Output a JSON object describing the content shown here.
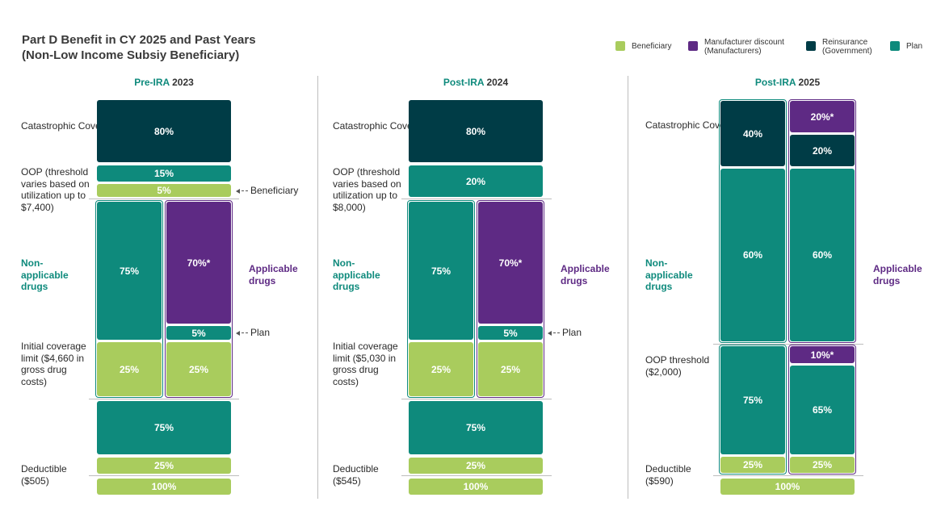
{
  "chart_data": {
    "type": "stacked-bar",
    "title": "Part D Benefit in CY 2025 and Past Years",
    "subtitle": "(Non-Low Income Subsiy Beneficiary)",
    "legend": [
      {
        "name": "Beneficiary",
        "color": "#a9cc5d"
      },
      {
        "name": "Manufacturer discount (Manufacturers)",
        "line1": "Manufacturer discount",
        "line2": "(Manufacturers)",
        "color": "#5e2a84"
      },
      {
        "name": "Reinsurance (Government)",
        "line1": "Reinsurance",
        "line2": "(Government)",
        "color": "#003c46"
      },
      {
        "name": "Plan",
        "color": "#0e8a7c"
      }
    ],
    "panels": [
      {
        "title_prefix": "Pre-IRA",
        "title_year": "2023",
        "labels": {
          "catastrophic": "Catastrophic Coverage",
          "oop": "OOP (threshold varies based on utilization up to $7,400)",
          "nonapplicable": "Non-applicable drugs",
          "initial": "Initial coverage limit ($4,660 in gross drug costs)",
          "deductible": "Deductible ($505)",
          "applicable": "Applicable drugs",
          "beneficiary_note": "Beneficiary",
          "plan_note": "Plan"
        },
        "segments": [
          {
            "label": "80%",
            "value": 80,
            "payer": "Reinsurance"
          },
          {
            "label": "15%",
            "value": 15,
            "payer": "Plan"
          },
          {
            "label": "5%",
            "value": 5,
            "payer": "Beneficiary"
          },
          {
            "label": "75%",
            "value": 75,
            "payer": "Plan",
            "drugs": "Non-applicable"
          },
          {
            "label": "25%",
            "value": 25,
            "payer": "Beneficiary",
            "drugs": "Non-applicable"
          },
          {
            "label": "70%*",
            "value": 70,
            "payer": "Manufacturer discount",
            "drugs": "Applicable"
          },
          {
            "label": "5%",
            "value": 5,
            "payer": "Plan",
            "drugs": "Applicable"
          },
          {
            "label": "25%",
            "value": 25,
            "payer": "Beneficiary",
            "drugs": "Applicable"
          },
          {
            "label": "75%",
            "value": 75,
            "payer": "Plan"
          },
          {
            "label": "25%",
            "value": 25,
            "payer": "Beneficiary"
          },
          {
            "label": "100%",
            "value": 100,
            "payer": "Beneficiary"
          }
        ]
      },
      {
        "title_prefix": "Post-IRA",
        "title_year": "2024",
        "labels": {
          "catastrophic": "Catastrophic Coverage",
          "oop": "OOP (threshold varies based on utilization up to $8,000)",
          "nonapplicable": "Non-applicable drugs",
          "initial": "Initial coverage limit ($5,030 in gross drug costs)",
          "deductible": "Deductible ($545)",
          "applicable": "Applicable drugs",
          "plan_note": "Plan"
        },
        "segments": [
          {
            "label": "80%",
            "value": 80,
            "payer": "Reinsurance"
          },
          {
            "label": "20%",
            "value": 20,
            "payer": "Plan"
          },
          {
            "label": "75%",
            "value": 75,
            "payer": "Plan",
            "drugs": "Non-applicable"
          },
          {
            "label": "25%",
            "value": 25,
            "payer": "Beneficiary",
            "drugs": "Non-applicable"
          },
          {
            "label": "70%*",
            "value": 70,
            "payer": "Manufacturer discount",
            "drugs": "Applicable"
          },
          {
            "label": "5%",
            "value": 5,
            "payer": "Plan",
            "drugs": "Applicable"
          },
          {
            "label": "25%",
            "value": 25,
            "payer": "Beneficiary",
            "drugs": "Applicable"
          },
          {
            "label": "75%",
            "value": 75,
            "payer": "Plan"
          },
          {
            "label": "25%",
            "value": 25,
            "payer": "Beneficiary"
          },
          {
            "label": "100%",
            "value": 100,
            "payer": "Beneficiary"
          }
        ]
      },
      {
        "title_prefix": "Post-IRA",
        "title_year": "2025",
        "labels": {
          "catastrophic": "Catastrophic Coverage",
          "nonapplicable": "Non-applicable drugs",
          "oop": "OOP threshold ($2,000)",
          "deductible": "Deductible ($590)",
          "applicable": "Applicable drugs"
        },
        "segments": [
          {
            "label": "40%",
            "value": 40,
            "payer": "Reinsurance",
            "drugs": "Non-applicable"
          },
          {
            "label": "60%",
            "value": 60,
            "payer": "Plan",
            "drugs": "Non-applicable"
          },
          {
            "label": "20%*",
            "value": 20,
            "payer": "Manufacturer discount",
            "drugs": "Applicable"
          },
          {
            "label": "20%",
            "value": 20,
            "payer": "Reinsurance",
            "drugs": "Applicable"
          },
          {
            "label": "60%",
            "value": 60,
            "payer": "Plan",
            "drugs": "Applicable"
          },
          {
            "label": "75%",
            "value": 75,
            "payer": "Plan",
            "drugs": "Non-applicable"
          },
          {
            "label": "25%",
            "value": 25,
            "payer": "Beneficiary",
            "drugs": "Non-applicable"
          },
          {
            "label": "10%*",
            "value": 10,
            "payer": "Manufacturer discount",
            "drugs": "Applicable"
          },
          {
            "label": "65%",
            "value": 65,
            "payer": "Plan",
            "drugs": "Applicable"
          },
          {
            "label": "25%",
            "value": 25,
            "payer": "Beneficiary",
            "drugs": "Applicable"
          },
          {
            "label": "100%",
            "value": 100,
            "payer": "Beneficiary"
          }
        ]
      }
    ]
  }
}
